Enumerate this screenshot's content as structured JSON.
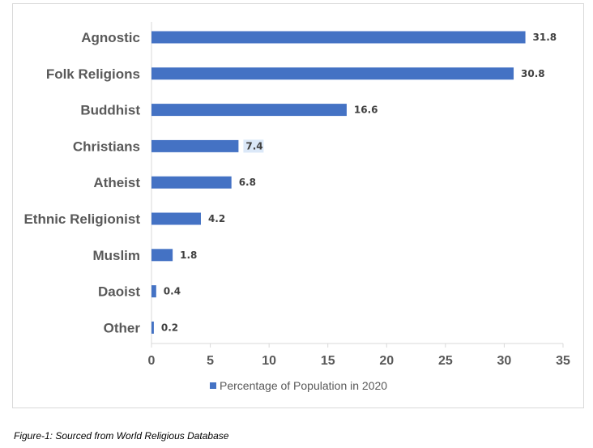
{
  "chart_data": {
    "type": "bar",
    "orientation": "horizontal",
    "categories": [
      "Agnostic",
      "Folk Religions",
      "Buddhist",
      "Christians",
      "Atheist",
      "Ethnic Religionist",
      "Muslim",
      "Daoist",
      "Other"
    ],
    "series": [
      {
        "name": "Percentage of Population in 2020",
        "values": [
          31.8,
          30.8,
          16.6,
          7.4,
          6.8,
          4.2,
          1.8,
          0.4,
          0.2
        ],
        "color": "#4472c4"
      }
    ],
    "data_labels": [
      "31.8",
      "30.8",
      "16.6",
      "7.4",
      "6.8",
      "4.2",
      "1.8",
      "0.4",
      "0.2"
    ],
    "highlighted_label": "7.4",
    "highlight_color": "#dbe8f8",
    "x_ticks": [
      "0",
      "5",
      "10",
      "15",
      "20",
      "25",
      "30",
      "35"
    ],
    "xlim": [
      0,
      35
    ],
    "grid": false,
    "legend_position": "bottom",
    "title": "",
    "xlabel": "",
    "ylabel": ""
  },
  "caption": "Figure-1: Sourced from World Religious Database"
}
